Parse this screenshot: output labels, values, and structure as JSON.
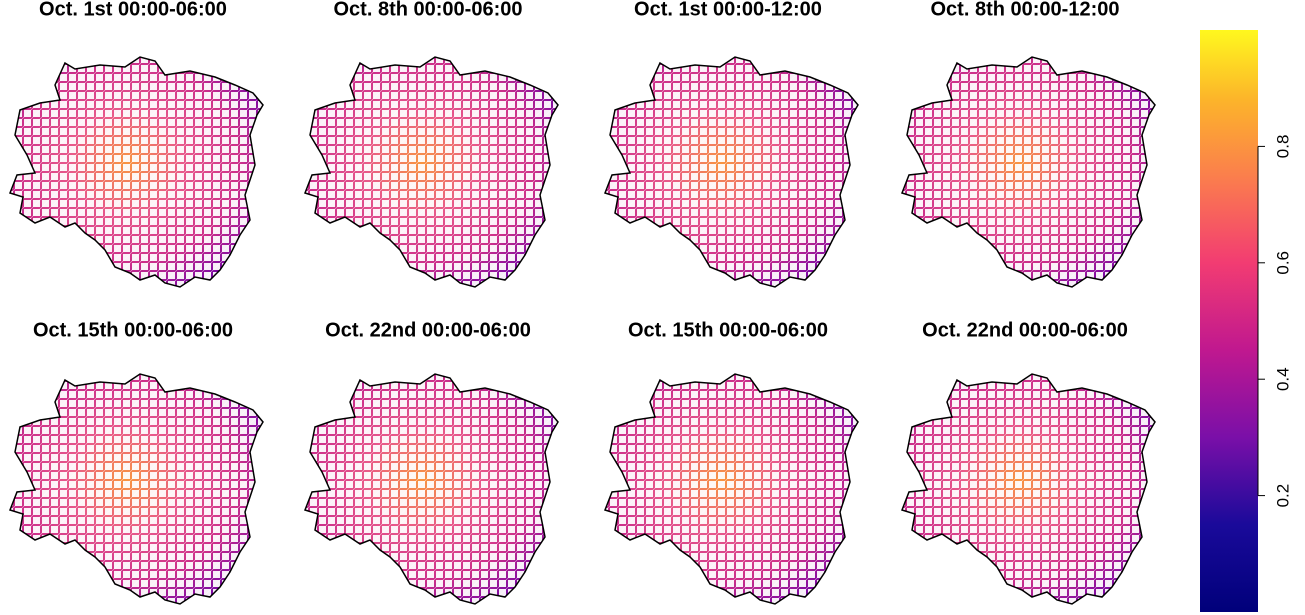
{
  "panels": [
    {
      "title": "Oct. 1st 00:00-06:00"
    },
    {
      "title": "Oct. 8th 00:00-06:00"
    },
    {
      "title": "Oct. 1st 00:00-12:00"
    },
    {
      "title": "Oct. 8th 00:00-12:00"
    },
    {
      "title": "Oct. 15th 00:00-06:00"
    },
    {
      "title": "Oct. 22nd 00:00-06:00"
    },
    {
      "title": "Oct. 15th 00:00-06:00"
    },
    {
      "title": "Oct. 22nd 00:00-06:00"
    }
  ],
  "colorbar": {
    "ylim": [
      0,
      1
    ],
    "yticks": [
      0.2,
      0.4,
      0.6,
      0.8
    ]
  }
}
